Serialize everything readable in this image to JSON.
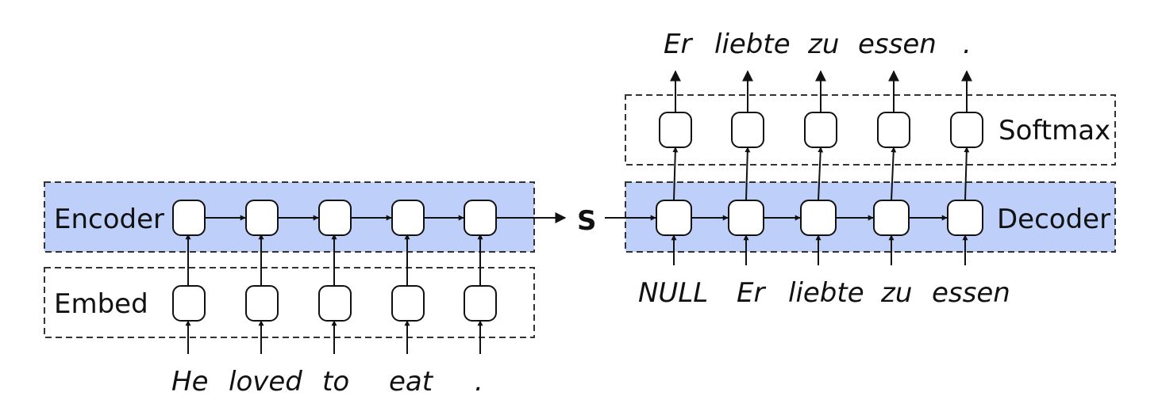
{
  "encoder_side": {
    "encoder_label": "Encoder",
    "embed_label": "Embed",
    "input_words": [
      "He",
      "loved",
      "to",
      "eat",
      "."
    ]
  },
  "state_label": "S",
  "decoder_side": {
    "decoder_label": "Decoder",
    "softmax_label": "Softmax",
    "input_words": [
      "NULL",
      "Er",
      "liebte",
      "zu",
      "essen"
    ],
    "output_words": [
      "Er",
      "liebte",
      "zu",
      "essen",
      "."
    ]
  },
  "colors": {
    "layer_fill": "#bed0f9",
    "stroke": "#111111"
  }
}
